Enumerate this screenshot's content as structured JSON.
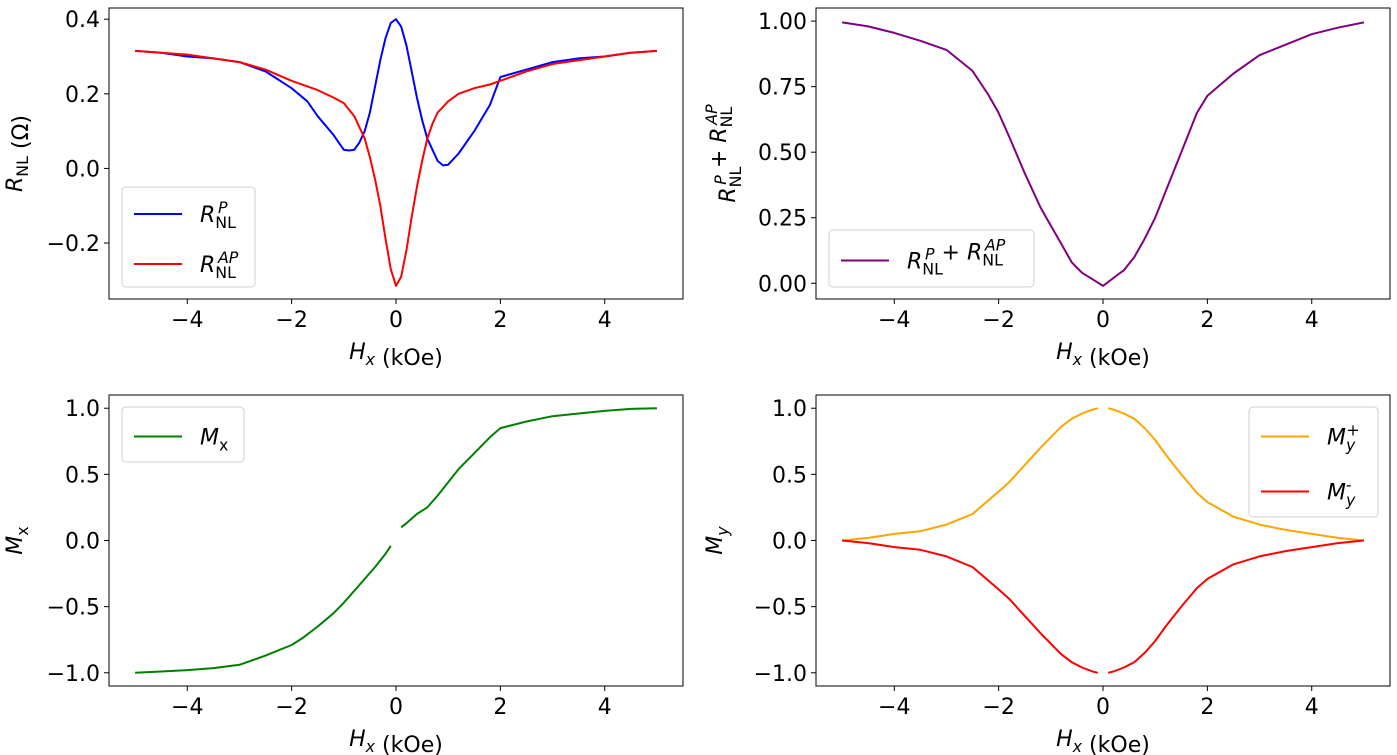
{
  "chart_data": [
    {
      "type": "line",
      "xlabel": "H_x (kOe)",
      "ylabel": "R_NL (Ω)",
      "xlim": [
        -5.5,
        5.5
      ],
      "ylim": [
        -0.35,
        0.43
      ],
      "xticks": [
        -4,
        -2,
        0,
        2,
        4
      ],
      "xtick_labels": [
        "−4",
        "−2",
        "0",
        "2",
        "4"
      ],
      "yticks": [
        -0.2,
        0.0,
        0.2,
        0.4
      ],
      "ytick_labels": [
        "−0.2",
        "0.0",
        "0.2",
        "0.4"
      ],
      "legend_position": "lower-left",
      "series": [
        {
          "name": "R_NL^P",
          "color": "#0000ff",
          "x": [
            -5,
            -4.5,
            -4,
            -3.5,
            -3,
            -2.5,
            -2,
            -1.7,
            -1.5,
            -1.2,
            -1,
            -0.9,
            -0.8,
            -0.7,
            -0.6,
            -0.5,
            -0.4,
            -0.3,
            -0.2,
            -0.1,
            0,
            0.1,
            0.2,
            0.3,
            0.4,
            0.5,
            0.6,
            0.7,
            0.8,
            0.9,
            1,
            1.2,
            1.5,
            1.8,
            2,
            2.5,
            3,
            3.5,
            4,
            4.5,
            5
          ],
          "y": [
            0.315,
            0.31,
            0.3,
            0.295,
            0.285,
            0.26,
            0.215,
            0.18,
            0.14,
            0.09,
            0.05,
            0.048,
            0.05,
            0.07,
            0.1,
            0.15,
            0.22,
            0.29,
            0.35,
            0.39,
            0.4,
            0.38,
            0.33,
            0.26,
            0.19,
            0.13,
            0.08,
            0.05,
            0.02,
            0.008,
            0.01,
            0.04,
            0.1,
            0.17,
            0.245,
            0.265,
            0.285,
            0.295,
            0.3,
            0.31,
            0.315
          ]
        },
        {
          "name": "R_NL^AP",
          "color": "#ff0000",
          "x": [
            -5,
            -4.5,
            -4,
            -3.5,
            -3,
            -2.5,
            -2,
            -1.5,
            -1.2,
            -1,
            -0.8,
            -0.6,
            -0.5,
            -0.4,
            -0.3,
            -0.2,
            -0.1,
            0,
            0.1,
            0.2,
            0.3,
            0.4,
            0.5,
            0.6,
            0.7,
            0.8,
            1,
            1.2,
            1.5,
            1.8,
            2,
            2.5,
            3,
            3.5,
            4,
            4.5,
            5
          ],
          "y": [
            0.315,
            0.31,
            0.305,
            0.295,
            0.285,
            0.265,
            0.235,
            0.21,
            0.19,
            0.175,
            0.14,
            0.08,
            0.03,
            -0.03,
            -0.1,
            -0.19,
            -0.27,
            -0.315,
            -0.29,
            -0.22,
            -0.13,
            -0.05,
            0.02,
            0.08,
            0.12,
            0.15,
            0.18,
            0.2,
            0.215,
            0.225,
            0.235,
            0.26,
            0.28,
            0.29,
            0.3,
            0.31,
            0.315
          ]
        }
      ]
    },
    {
      "type": "line",
      "xlabel": "H_x (kOe)",
      "ylabel": "R_NL^P + R_NL^AP",
      "xlim": [
        -5.5,
        5.5
      ],
      "ylim": [
        -0.06,
        1.05
      ],
      "xticks": [
        -4,
        -2,
        0,
        2,
        4
      ],
      "xtick_labels": [
        "−4",
        "−2",
        "0",
        "2",
        "4"
      ],
      "yticks": [
        0.0,
        0.25,
        0.5,
        0.75,
        1.0
      ],
      "ytick_labels": [
        "0.00",
        "0.25",
        "0.50",
        "0.75",
        "1.00"
      ],
      "legend_position": "lower-left",
      "series": [
        {
          "name": "R_NL^P + R_NL^AP",
          "color": "#800080",
          "x": [
            -5,
            -4.5,
            -4,
            -3.5,
            -3,
            -2.5,
            -2.2,
            -2,
            -1.8,
            -1.5,
            -1.2,
            -1,
            -0.8,
            -0.6,
            -0.4,
            -0.2,
            0,
            0.2,
            0.4,
            0.6,
            0.8,
            1,
            1.2,
            1.5,
            1.8,
            2,
            2.5,
            3,
            3.5,
            4,
            4.5,
            5
          ],
          "y": [
            0.995,
            0.98,
            0.955,
            0.925,
            0.89,
            0.81,
            0.72,
            0.65,
            0.56,
            0.42,
            0.29,
            0.22,
            0.15,
            0.08,
            0.04,
            0.015,
            -0.01,
            0.02,
            0.05,
            0.1,
            0.17,
            0.25,
            0.35,
            0.5,
            0.65,
            0.715,
            0.8,
            0.87,
            0.91,
            0.95,
            0.975,
            0.995
          ]
        }
      ]
    },
    {
      "type": "line",
      "xlabel": "H_x (kOe)",
      "ylabel": "M_x",
      "xlim": [
        -5.5,
        5.5
      ],
      "ylim": [
        -1.1,
        1.1
      ],
      "xticks": [
        -4,
        -2,
        0,
        2,
        4
      ],
      "xtick_labels": [
        "−4",
        "−2",
        "0",
        "2",
        "4"
      ],
      "yticks": [
        -1.0,
        -0.5,
        0.0,
        0.5,
        1.0
      ],
      "ytick_labels": [
        "−1.0",
        "−0.5",
        "0.0",
        "0.5",
        "1.0"
      ],
      "legend_position": "upper-left",
      "series": [
        {
          "name": "M_x",
          "color": "#008000",
          "segments": [
            {
              "x": [
                -5,
                -4.5,
                -4,
                -3.5,
                -3,
                -2.5,
                -2,
                -1.8,
                -1.5,
                -1.2,
                -1,
                -0.8,
                -0.6,
                -0.4,
                -0.2,
                -0.1
              ],
              "y": [
                -1.0,
                -0.99,
                -0.98,
                -0.965,
                -0.94,
                -0.87,
                -0.79,
                -0.74,
                -0.65,
                -0.55,
                -0.47,
                -0.38,
                -0.29,
                -0.2,
                -0.1,
                -0.04
              ]
            },
            {
              "x": [
                0.1,
                0.2,
                0.4,
                0.6,
                0.8,
                1,
                1.2,
                1.5,
                1.8,
                2,
                2.5,
                3,
                3.5,
                4,
                4.5,
                5
              ],
              "y": [
                0.1,
                0.13,
                0.2,
                0.25,
                0.34,
                0.44,
                0.54,
                0.66,
                0.78,
                0.85,
                0.9,
                0.94,
                0.96,
                0.98,
                0.995,
                1.0
              ]
            }
          ]
        }
      ]
    },
    {
      "type": "line",
      "xlabel": "H_x (kOe)",
      "ylabel": "M_y",
      "xlim": [
        -5.5,
        5.5
      ],
      "ylim": [
        -1.1,
        1.1
      ],
      "xticks": [
        -4,
        -2,
        0,
        2,
        4
      ],
      "xtick_labels": [
        "−4",
        "−2",
        "0",
        "2",
        "4"
      ],
      "yticks": [
        -1.0,
        -0.5,
        0.0,
        0.5,
        1.0
      ],
      "ytick_labels": [
        "−1.0",
        "−0.5",
        "0.0",
        "0.5",
        "1.0"
      ],
      "legend_position": "upper-right",
      "series": [
        {
          "name": "M_y^+",
          "color": "#ffa500",
          "segments": [
            {
              "x": [
                -5,
                -4.5,
                -4,
                -3.5,
                -3,
                -2.5,
                -2,
                -1.8,
                -1.5,
                -1.2,
                -1,
                -0.8,
                -0.6,
                -0.4,
                -0.2,
                -0.1
              ],
              "y": [
                0.0,
                0.02,
                0.05,
                0.07,
                0.12,
                0.2,
                0.37,
                0.44,
                0.57,
                0.7,
                0.78,
                0.86,
                0.92,
                0.96,
                0.99,
                1.0
              ]
            },
            {
              "x": [
                0.1,
                0.2,
                0.4,
                0.6,
                0.8,
                1,
                1.2,
                1.5,
                1.8,
                2,
                2.5,
                3,
                3.5,
                4,
                4.5,
                5
              ],
              "y": [
                1.0,
                0.99,
                0.96,
                0.92,
                0.85,
                0.76,
                0.65,
                0.5,
                0.36,
                0.29,
                0.18,
                0.12,
                0.08,
                0.05,
                0.02,
                0.0
              ]
            }
          ]
        },
        {
          "name": "M_y^-",
          "color": "#ff0000",
          "segments": [
            {
              "x": [
                -5,
                -4.5,
                -4,
                -3.5,
                -3,
                -2.5,
                -2,
                -1.8,
                -1.5,
                -1.2,
                -1,
                -0.8,
                -0.6,
                -0.4,
                -0.2,
                -0.1
              ],
              "y": [
                0.0,
                -0.02,
                -0.05,
                -0.07,
                -0.12,
                -0.2,
                -0.37,
                -0.44,
                -0.57,
                -0.7,
                -0.78,
                -0.86,
                -0.92,
                -0.96,
                -0.99,
                -1.0
              ]
            },
            {
              "x": [
                0.1,
                0.2,
                0.4,
                0.6,
                0.8,
                1,
                1.2,
                1.5,
                1.8,
                2,
                2.5,
                3,
                3.5,
                4,
                4.5,
                5
              ],
              "y": [
                -1.0,
                -0.99,
                -0.96,
                -0.92,
                -0.85,
                -0.76,
                -0.65,
                -0.5,
                -0.36,
                -0.29,
                -0.18,
                -0.12,
                -0.08,
                -0.05,
                -0.02,
                0.0
              ]
            }
          ]
        }
      ]
    }
  ]
}
